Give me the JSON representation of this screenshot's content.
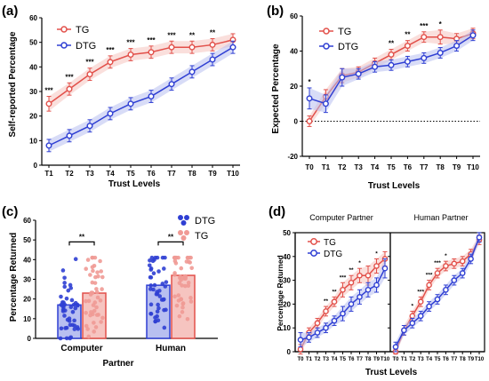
{
  "colors": {
    "tg": "#e2504a",
    "tg_fill": "#f6c4c0",
    "dtg": "#2f3fd3",
    "dtg_fill": "#b8bff0",
    "axis": "#000000"
  },
  "chart_data": [
    {
      "panel": "(a)",
      "type": "line",
      "categories": [
        "T1",
        "T2",
        "T3",
        "T4",
        "T5",
        "T6",
        "T7",
        "T8",
        "T9",
        "T10"
      ],
      "ylabel": "Self-reported Percentage",
      "xlabel": "Trust Levels",
      "ylim": [
        0,
        60
      ],
      "yticks": [
        0,
        10,
        20,
        30,
        40,
        50,
        60
      ],
      "legend": "top-left",
      "series": [
        {
          "name": "TG",
          "values": [
            25,
            31,
            37,
            42,
            45,
            46,
            48,
            48,
            49,
            51
          ],
          "err": [
            3,
            2.5,
            2.5,
            2.5,
            2.5,
            2.5,
            2.5,
            2.5,
            2.5,
            2.5
          ]
        },
        {
          "name": "DTG",
          "values": [
            8,
            12,
            16,
            21,
            25,
            28,
            33,
            38,
            43,
            48
          ],
          "err": [
            2.5,
            2.5,
            2.5,
            2.5,
            2.5,
            2.5,
            2.5,
            2.5,
            2.5,
            2.5
          ]
        }
      ],
      "significance": [
        "***",
        "***",
        "***",
        "***",
        "***",
        "***",
        "***",
        "**",
        "**",
        ""
      ]
    },
    {
      "panel": "(b)",
      "type": "line",
      "categories": [
        "T0",
        "T1",
        "T2",
        "T3",
        "T4",
        "T5",
        "T6",
        "T7",
        "T8",
        "T9",
        "T10"
      ],
      "ylabel": "Expected Percentage",
      "xlabel": "Trust Levels",
      "ylim": [
        -20,
        60
      ],
      "yticks": [
        -20,
        0,
        20,
        40,
        60
      ],
      "legend": "top-left",
      "series": [
        {
          "name": "TG",
          "values": [
            0,
            14,
            26,
            28,
            33,
            38,
            43,
            48,
            48,
            47,
            50
          ],
          "err": [
            3,
            4,
            4,
            3,
            3,
            3,
            3,
            3,
            4,
            3,
            3
          ]
        },
        {
          "name": "DTG",
          "values": [
            13,
            10,
            25,
            27,
            31,
            32,
            34,
            36,
            39,
            43,
            49
          ],
          "err": [
            6,
            5,
            5,
            3,
            3,
            3,
            3,
            3,
            3,
            3,
            3
          ]
        }
      ],
      "significance": [
        "*",
        "",
        "",
        "",
        "",
        "**",
        "**",
        "***",
        "*",
        "",
        ""
      ]
    },
    {
      "panel": "(c)",
      "type": "bar",
      "categories": [
        "Computer",
        "Human"
      ],
      "ylabel": "Percentage Returned",
      "xlabel": "Partner",
      "ylim": [
        0,
        60
      ],
      "yticks": [
        0,
        10,
        20,
        30,
        40,
        50,
        60
      ],
      "legend": "top-right",
      "series": [
        {
          "name": "DTG",
          "values": [
            17,
            27
          ]
        },
        {
          "name": "TG",
          "values": [
            23,
            32
          ]
        }
      ],
      "significance": [
        "**",
        "**"
      ]
    },
    {
      "panel": "(d)",
      "type": "line",
      "facets": [
        "Computer Partner",
        "Human Partner"
      ],
      "categories": [
        "T0",
        "T1",
        "T2",
        "T3",
        "T4",
        "T5",
        "T6",
        "T7",
        "T8",
        "T9",
        "T10"
      ],
      "ylabel": "Percentage Returned",
      "xlabel": "Trust Levels",
      "ylim": [
        0,
        50
      ],
      "yticks": [
        0,
        10,
        20,
        30,
        40,
        50
      ],
      "legend": "top-left",
      "computer": {
        "series": [
          {
            "name": "TG",
            "values": [
              1,
              8,
              12,
              17,
              21,
              26,
              29,
              32,
              32,
              36,
              39
            ],
            "err": [
              2,
              2,
              2,
              2,
              2,
              3,
              3,
              3,
              4,
              3,
              3
            ]
          },
          {
            "name": "DTG",
            "values": [
              5,
              6,
              8,
              10,
              13,
              16,
              20,
              23,
              26,
              28,
              35
            ],
            "err": [
              3,
              2,
              2,
              2,
              2,
              3,
              3,
              3,
              3,
              3,
              4
            ]
          }
        ],
        "significance": [
          "",
          "",
          "",
          "**",
          "**",
          "***",
          "**",
          "*",
          "",
          "*",
          ""
        ]
      },
      "human": {
        "series": [
          {
            "name": "TG",
            "values": [
              0,
              9,
              15,
              21,
              28,
              33,
              36,
              37,
              38,
              41,
              47
            ],
            "err": [
              1,
              2,
              2,
              2,
              2,
              2,
              2,
              2,
              2,
              2,
              2
            ]
          },
          {
            "name": "DTG",
            "values": [
              2,
              9,
              12,
              15,
              19,
              22,
              26,
              30,
              33,
              39,
              48
            ],
            "err": [
              2,
              2,
              2,
              2,
              2,
              2,
              2,
              2,
              2,
              2,
              2
            ]
          }
        ],
        "significance": [
          "",
          "",
          "*",
          "***",
          "***",
          "***",
          "*",
          "",
          "",
          "",
          ""
        ]
      }
    }
  ]
}
